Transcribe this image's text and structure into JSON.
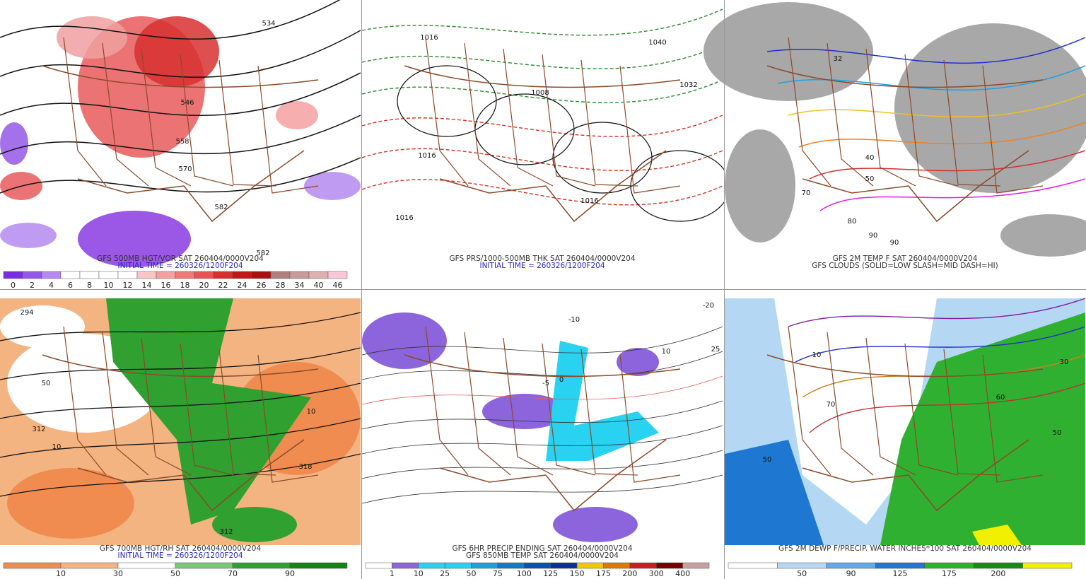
{
  "panels": [
    {
      "caption": [
        {
          "text": "GFS 500MB HGT/VOR SAT 260404/0000V204",
          "color": "#333333"
        },
        {
          "text": "INITIAL TIME = 260326/1200F204",
          "color": "#2828c0"
        }
      ],
      "colorbar": {
        "labels": [
          "0",
          "2",
          "4",
          "6",
          "8",
          "10",
          "12",
          "14",
          "16",
          "18",
          "20",
          "22",
          "24",
          "26",
          "28",
          "34",
          "40",
          "46"
        ],
        "colors": [
          "#7a2de0",
          "#9458e8",
          "#b48af0",
          "#ffffff",
          "#ffffff",
          "#ffffff",
          "#ffffff",
          "#f8c8c8",
          "#f4a0a0",
          "#f07a7a",
          "#e85454",
          "#d83030",
          "#c01818",
          "#a81010",
          "#b08080",
          "#c89a9a",
          "#e0b0b0",
          "#f8c8d8"
        ]
      },
      "map_labels": [
        "534",
        "546",
        "558",
        "570",
        "582",
        "582"
      ]
    },
    {
      "caption": [
        {
          "text": "GFS PRS/1000-500MB THK SAT 260404/0000V204",
          "color": "#333333"
        },
        {
          "text": "INITIAL TIME = 260326/1200F204",
          "color": "#2828c0"
        }
      ],
      "map_labels": [
        "1016",
        "1008",
        "1016",
        "1016",
        "1032",
        "1040",
        "1016"
      ]
    },
    {
      "caption": [
        {
          "text": "GFS 2M TEMP F SAT 260404/0000V204",
          "color": "#333333"
        },
        {
          "text": "GFS CLOUDS (SOLID=LOW SLASH=MID DASH=HI)",
          "color": "#333333"
        }
      ],
      "map_labels": [
        "32",
        "40",
        "50",
        "70",
        "80",
        "90",
        "90"
      ]
    },
    {
      "caption": [
        {
          "text": "GFS 700MB HGT/RH SAT 260404/0000V204",
          "color": "#333333"
        },
        {
          "text": "INITIAL TIME = 260326/1200F204",
          "color": "#2828c0"
        }
      ],
      "colorbar": {
        "labels": [
          "10",
          "30",
          "50",
          "70",
          "90"
        ],
        "colors": [
          "#f08c50",
          "#f4b482",
          "#ffffff",
          "#78c878",
          "#30a030",
          "#148214"
        ]
      },
      "map_labels": [
        "294",
        "312",
        "50",
        "10",
        "318",
        "312",
        "10"
      ]
    },
    {
      "caption": [
        {
          "text": "GFS 6HR PRECIP ENDING SAT 260404/0000V204",
          "color": "#333333"
        },
        {
          "text": "GFS 850MB TEMP SAT 260404/0000V204",
          "color": "#333333"
        }
      ],
      "colorbar": {
        "labels": [
          "1",
          "10",
          "25",
          "50",
          "75",
          "100",
          "125",
          "150",
          "175",
          "200",
          "300",
          "400"
        ],
        "colors": [
          "#ffffff",
          "#8c64dc",
          "#28d2f0",
          "#28d2f0",
          "#1ea0dc",
          "#1478c8",
          "#0a50b4",
          "#0a3296",
          "#f0c800",
          "#e07800",
          "#c81e1e",
          "#780000",
          "#c8a0a0"
        ]
      },
      "map_labels": [
        "-10",
        "-5",
        "0",
        "10",
        "-20",
        "25"
      ]
    },
    {
      "caption": [
        {
          "text": "GFS 2M DEWP F/PRECIP. WATER INCHES*100 SAT 260404/0000V204",
          "color": "#333333"
        }
      ],
      "colorbar": {
        "labels": [
          "50",
          "90",
          "125",
          "175",
          "200"
        ],
        "colors": [
          "#ffffff",
          "#b4d8f4",
          "#64a8e6",
          "#1e78d2",
          "#28b428",
          "#148c14",
          "#f0f000"
        ]
      },
      "map_labels": [
        "50",
        "70",
        "30",
        "60",
        "10",
        "50"
      ]
    }
  ]
}
